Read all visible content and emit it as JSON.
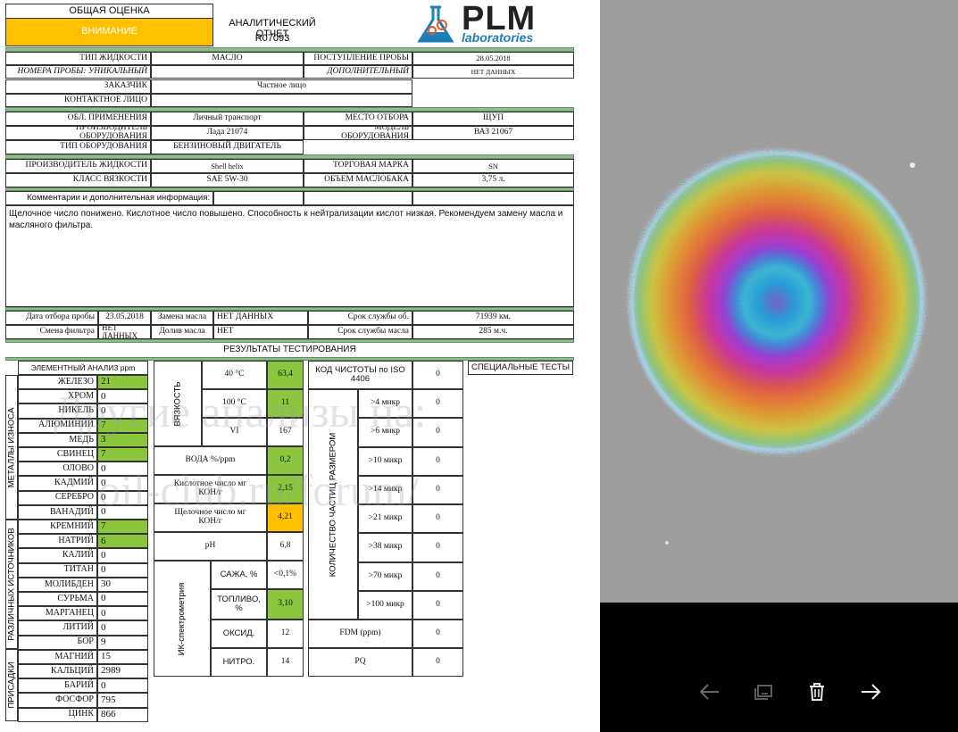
{
  "header": {
    "overall_label": "ОБЩАЯ ОЦЕНКА",
    "overall_status": "ВНИМАНИЕ",
    "report_title": "АНАЛИТИЧЕСКИЙ ОТЧЕТ",
    "report_id": "R07093",
    "logo_main": "PLM",
    "logo_sub": "laboratories"
  },
  "sample": {
    "fluid_type_label": "ТИП ЖИДКОСТИ",
    "fluid_type": "МАСЛО",
    "receipt_label": "ПОСТУПЛЕНИЕ ПРОБЫ",
    "receipt_date": "28.05.2018",
    "numbers_label": "НОМЕРА ПРОБЫ: УНИКАЛЬНЫЙ",
    "additional_label": "ДОПОЛНИТЕЛЬНЫЙ",
    "additional": "НЕТ ДАННЫХ",
    "customer_label": "ЗАКАЗЧИК",
    "customer": "Частное лицо",
    "contact_label": "КОНТАКТНОЕ ЛИЦО"
  },
  "equipment": {
    "area_label": "ОБЛ. ПРИМЕНЕНИЯ",
    "area": "Личный транспорт",
    "point_label": "МЕСТО ОТБОРА",
    "point": "ЩУП",
    "maker_label": "ПРОИЗВОДИТЕЛЬ ОБОРУДОВАНИЯ",
    "maker": "Лада 21074",
    "model_label": "МОДЕЛЬ ОБОРУДОВАНИЯ",
    "model": "ВАЗ 21067",
    "type_label": "ТИП ОБОРУДОВАНИЯ",
    "type": "БЕНЗИНОВЫЙ ДВИГАТЕЛЬ"
  },
  "fluid": {
    "maker_label": "ПРОИЗВОДИТЕЛЬ ЖИДКОСТИ",
    "maker": "Shell helix",
    "brand_label": "ТОРГОВАЯ МАРКА",
    "brand": "SN",
    "visc_label": "КЛАСС ВЯЗКОСТИ",
    "visc": "SAE 5W-30",
    "volume_label": "ОБЪЕМ МАСЛОБАКА",
    "volume": "3,75 л."
  },
  "comments": {
    "label": "Комментарии и дополнительная информация:",
    "text": "Щелочное число понижено. Кислотное число повышено. Способность к нейтрализации кислот низкая. Рекомендуем замену масла и масляного фильтра."
  },
  "service": {
    "sample_date_label": "Дата отбора пробы",
    "sample_date": "23.05.2018",
    "oil_change_label": "Замена масла",
    "oil_change": "НЕТ ДАННЫХ",
    "equip_life_label": "Срок службы об.",
    "equip_life": "71939 км.",
    "filter_change_label": "Смена фильтра",
    "filter_change": "НЕТ ДАННЫХ",
    "topup_label": "Долив масла",
    "topup": "НЕТ",
    "oil_life_label": "Срок службы масла",
    "oil_life": "285 м.ч."
  },
  "results_title": "РЕЗУЛЬТАТЫ ТЕСТИРОВАНИЯ",
  "elements": {
    "title": "ЭЛЕМЕНТНЫЙ АНАЛИЗ ppm",
    "group_wear": "МЕТАЛЛЫ ИЗНОСА",
    "group_sources": "РАЗЛИЧНЫХ ИСТОЧНИКОВ",
    "group_additives": "ПРИСАДКИ",
    "rows": [
      {
        "name": "ЖЕЛЕЗО",
        "value": "21",
        "flag": "green"
      },
      {
        "name": "ХРОМ",
        "value": "0",
        "flag": ""
      },
      {
        "name": "НИКЕЛЬ",
        "value": "0",
        "flag": ""
      },
      {
        "name": "АЛЮМИНИЙ",
        "value": "7",
        "flag": "green"
      },
      {
        "name": "МЕДЬ",
        "value": "3",
        "flag": "green"
      },
      {
        "name": "СВИНЕЦ",
        "value": "7",
        "flag": "green"
      },
      {
        "name": "ОЛОВО",
        "value": "0",
        "flag": ""
      },
      {
        "name": "КАДМИЙ",
        "value": "0",
        "flag": ""
      },
      {
        "name": "СЕРЕБРО",
        "value": "0",
        "flag": ""
      },
      {
        "name": "ВАНАДИЙ",
        "value": "0",
        "flag": ""
      },
      {
        "name": "КРЕМНИЙ",
        "value": "7",
        "flag": "green"
      },
      {
        "name": "НАТРИЙ",
        "value": "6",
        "flag": "green"
      },
      {
        "name": "КАЛИЙ",
        "value": "0",
        "flag": ""
      },
      {
        "name": "ТИТАН",
        "value": "0",
        "flag": ""
      },
      {
        "name": "МОЛИБДЕН",
        "value": "30",
        "flag": ""
      },
      {
        "name": "СУРЬМА",
        "value": "0",
        "flag": ""
      },
      {
        "name": "МАРГАНЕЦ",
        "value": "0",
        "flag": ""
      },
      {
        "name": "ЛИТИЙ",
        "value": "0",
        "flag": ""
      },
      {
        "name": "БОР",
        "value": "9",
        "flag": ""
      },
      {
        "name": "МАГНИЙ",
        "value": "15",
        "flag": ""
      },
      {
        "name": "КАЛЬЦИЙ",
        "value": "2989",
        "flag": ""
      },
      {
        "name": "БАРИЙ",
        "value": "0",
        "flag": ""
      },
      {
        "name": "ФОСФОР",
        "value": "795",
        "flag": ""
      },
      {
        "name": "ЦИНК",
        "value": "866",
        "flag": ""
      }
    ]
  },
  "physchem": {
    "viscosity_label": "ВЯЗКОСТЬ",
    "v40_label": "40 °С",
    "v40": "63,4",
    "v100_label": "100 °С",
    "v100": "11",
    "vi_label": "VI",
    "vi": "167",
    "water_label": "ВОДА %/ppm",
    "water": "0,2",
    "tan_label": "Кислотное число мг КОН/г",
    "tan": "2,15",
    "tbn_label": "Щелочное число мг КОН/г",
    "tbn": "4,21",
    "ph_label": "pH",
    "ph": "6,8",
    "ir_label": "ИК-спектрометрия",
    "soot_label": "САЖА, %",
    "soot": "<0,1%",
    "fuel_label": "ТОПЛИВО, %",
    "fuel": "3,10",
    "oxid_label": "ОКСИД.",
    "oxid": "12",
    "nitro_label": "НИТРО.",
    "nitro": "14"
  },
  "cleanliness": {
    "iso_label": "КОД ЧИСТОТЫ по ISO 4406",
    "iso": "0",
    "group_label": "КОЛИЧЕСТВО ЧАСТИЦ РАЗМЕРОМ",
    "rows": [
      {
        "label": ">4 микр",
        "value": "0"
      },
      {
        "label": ">6 микр",
        "value": "0"
      },
      {
        "label": ">10 микр",
        "value": "0"
      },
      {
        "label": ">14 микр",
        "value": "0"
      },
      {
        "label": ">21 микр",
        "value": "0"
      },
      {
        "label": ">38 микр",
        "value": "0"
      },
      {
        "label": ">70 микр",
        "value": "0"
      },
      {
        "label": ">100 микр",
        "value": "0"
      }
    ],
    "fdm_label": "FDM (ppm)",
    "fdm": "0",
    "pq_label": "PQ",
    "pq": "0"
  },
  "special_tests_label": "СПЕЦИАЛЬНЫЕ ТЕСТЫ",
  "watermark": {
    "line1": "Другие анализы на:",
    "line2": "oil-club.ru/forum/"
  },
  "viewer_toolbar": {
    "prev_icon": "arrow-left-icon",
    "slideshow_icon": "slideshow-icon",
    "delete_icon": "trash-icon",
    "next_icon": "arrow-right-icon"
  },
  "colors": {
    "green": "#8cc63f",
    "orange": "#ffc000",
    "band": "#8fbf8f",
    "logo_blue": "#1f7fb5"
  }
}
